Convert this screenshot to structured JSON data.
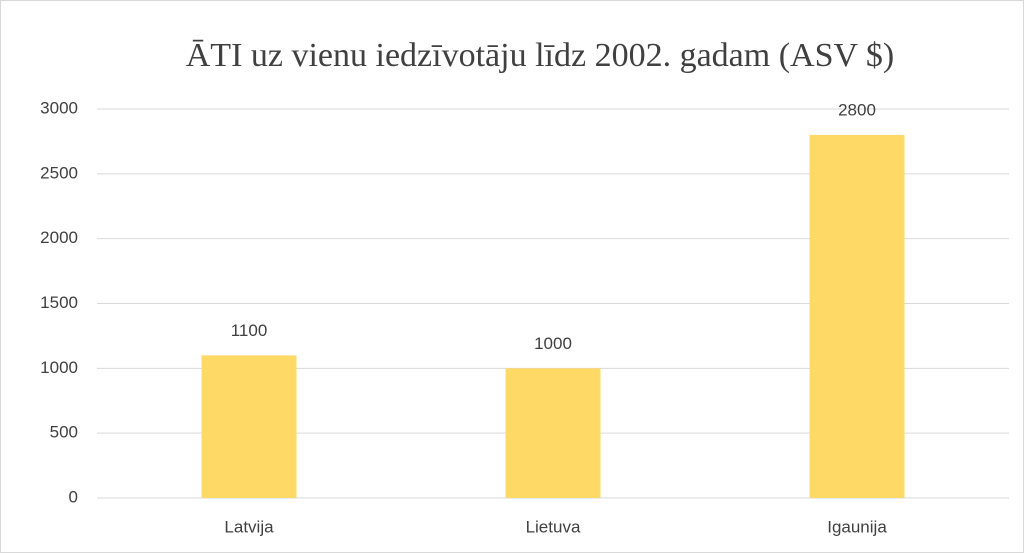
{
  "chart_data": {
    "type": "bar",
    "title": "ĀTI uz vienu iedzīvotāju līdz 2002. gadam (ASV $)",
    "categories": [
      "Latvija",
      "Lietuva",
      "Igaunija"
    ],
    "values": [
      1100,
      1000,
      2800
    ],
    "color": "#ffd966",
    "ylim": [
      0,
      3000
    ],
    "yticks": [
      0,
      500,
      1000,
      1500,
      2000,
      2500,
      3000
    ],
    "grid": true,
    "data_labels": true
  }
}
